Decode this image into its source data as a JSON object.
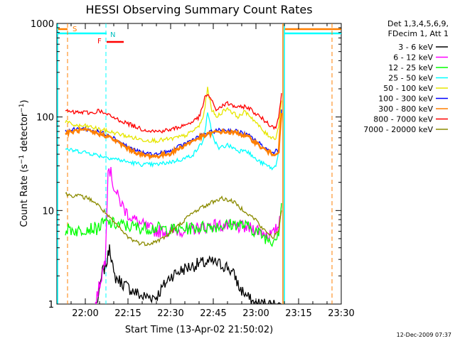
{
  "chart_data": {
    "type": "line",
    "title": "HESSI Observing Summary Count Rates",
    "xlabel": "Start Time (13-Apr-02 21:50:02)",
    "ylabel_main": "Count Rate (s",
    "ylabel_sup1": "−1",
    "ylabel_mid": " detector",
    "ylabel_sup2": "−1",
    "ylabel_end": ")",
    "y_scale": "log",
    "ylim": [
      1,
      1000
    ],
    "y_ticks": [
      {
        "value": 1,
        "label": "1"
      },
      {
        "value": 10,
        "label": "10"
      },
      {
        "value": 100,
        "label": "100"
      },
      {
        "value": 1000,
        "label": "1000"
      }
    ],
    "xlim_minutes": [
      0,
      100
    ],
    "x_ticks": [
      {
        "value": 10,
        "label": "22:00"
      },
      {
        "value": 25,
        "label": "22:15"
      },
      {
        "value": 40,
        "label": "22:30"
      },
      {
        "value": 55,
        "label": "22:45"
      },
      {
        "value": 70,
        "label": "23:00"
      },
      {
        "value": 85,
        "label": "23:15"
      },
      {
        "value": 100,
        "label": "23:30"
      }
    ],
    "legend_header": [
      "Det 1,3,4,5,6,9,",
      "FDecim 1, Att 1"
    ],
    "legend_position": "right",
    "series": [
      {
        "name": "3 - 6 keV",
        "color": "#000000",
        "x": [
          14,
          15,
          16,
          17,
          18,
          18.5,
          20,
          25,
          30,
          35,
          40,
          45,
          50,
          55,
          60,
          63,
          64,
          66,
          68,
          70,
          78,
          79
        ],
        "y": [
          1,
          1.4,
          2.2,
          2.5,
          3.2,
          4.5,
          2,
          1.5,
          1.2,
          1.2,
          2,
          2.4,
          2.7,
          2.8,
          2.5,
          1.9,
          1.5,
          1.3,
          1.1,
          1,
          1,
          1
        ]
      },
      {
        "name": "6 - 12 keV",
        "color": "#ff00ff",
        "x": [
          13.5,
          17,
          18,
          19,
          20,
          21,
          22,
          24,
          26,
          30,
          35,
          40,
          45,
          50,
          55,
          60,
          65,
          70,
          74,
          76,
          78,
          79
        ],
        "y": [
          1,
          3,
          30,
          25,
          18,
          15,
          13,
          10,
          8.5,
          7,
          6,
          6,
          6.2,
          6.5,
          7,
          6.8,
          6.6,
          6.4,
          5.6,
          5.5,
          7,
          12
        ]
      },
      {
        "name": "12 - 25 keV",
        "color": "#00ff00",
        "x": [
          3,
          5,
          8,
          10,
          14,
          17,
          20,
          25,
          30,
          35,
          40,
          45,
          50,
          55,
          60,
          63,
          65,
          68,
          70,
          74,
          76,
          78,
          79
        ],
        "y": [
          6.2,
          6.3,
          6,
          6.5,
          6.4,
          7.5,
          7.2,
          6.8,
          6.5,
          6.5,
          6.2,
          6.4,
          6.6,
          6.8,
          7,
          7.2,
          7,
          6.5,
          6,
          5,
          4.8,
          6,
          12
        ]
      },
      {
        "name": "25 - 50 keV",
        "color": "#00ffff",
        "x": [
          3,
          5,
          8,
          10,
          13,
          16,
          18,
          20,
          25,
          30,
          35,
          40,
          45,
          48,
          50,
          51.5,
          53,
          55,
          57,
          58,
          60,
          62,
          64,
          65,
          66,
          68,
          70,
          74,
          75,
          76,
          77,
          78,
          79
        ],
        "y": [
          46,
          44,
          43,
          42,
          40,
          38,
          37,
          36,
          33,
          31,
          31,
          33,
          36,
          40,
          48,
          56,
          108,
          60,
          45,
          48,
          50,
          47,
          43,
          44,
          46,
          40,
          35,
          30,
          29,
          28,
          30,
          45,
          120
        ]
      },
      {
        "name": "50 - 100 keV",
        "color": "#e6e600",
        "x": [
          3,
          5,
          8,
          10,
          12,
          14,
          16,
          18,
          20,
          25,
          30,
          35,
          40,
          45,
          47,
          50,
          51.5,
          53,
          54.5,
          56,
          58,
          60,
          62,
          64,
          65.5,
          67,
          69,
          71,
          73,
          75,
          76,
          77,
          78,
          79
        ],
        "y": [
          90,
          83,
          80,
          80,
          78,
          75,
          73,
          70,
          68,
          62,
          57,
          56,
          58,
          63,
          68,
          80,
          100,
          200,
          120,
          100,
          112,
          125,
          110,
          100,
          112,
          110,
          95,
          80,
          68,
          62,
          60,
          60,
          80,
          150
        ]
      },
      {
        "name": "100 - 300 keV",
        "color": "#0000ff",
        "x": [
          3,
          5,
          8,
          10,
          12,
          14,
          16,
          18,
          20,
          25,
          30,
          35,
          40,
          45,
          50,
          55,
          58,
          60,
          62,
          64,
          66,
          68,
          70,
          72,
          74,
          76,
          78,
          79
        ],
        "y": [
          70,
          72,
          75,
          75,
          72,
          70,
          68,
          65,
          60,
          48,
          41,
          40,
          43,
          52,
          62,
          70,
          73,
          72,
          71,
          70,
          66,
          62,
          56,
          50,
          45,
          42,
          45,
          120
        ]
      },
      {
        "name": "300 - 800 keV",
        "color": "#ff7f00",
        "x": [
          3,
          5,
          8,
          10,
          12,
          14,
          16,
          18,
          20,
          25,
          30,
          35,
          40,
          45,
          50,
          55,
          58,
          60,
          62,
          64,
          66,
          68,
          70,
          72,
          74,
          76,
          78,
          79
        ],
        "y": [
          67,
          69,
          72,
          72,
          69,
          67,
          65,
          62,
          57,
          46,
          39,
          38,
          41,
          50,
          60,
          68,
          70,
          69,
          68,
          67,
          63,
          59,
          53,
          47,
          43,
          40,
          43,
          110
        ]
      },
      {
        "name": "800 - 7000 keV",
        "color": "#ff0000",
        "x": [
          3,
          5,
          8,
          10,
          13,
          15,
          16,
          18,
          20,
          25,
          30,
          35,
          40,
          45,
          48,
          50,
          51,
          52,
          53,
          54,
          55,
          56,
          58,
          60,
          62,
          64,
          66,
          68,
          70,
          73,
          75,
          76,
          77,
          78,
          79
        ],
        "y": [
          118,
          112,
          112,
          112,
          110,
          120,
          110,
          105,
          98,
          85,
          74,
          70,
          73,
          82,
          90,
          100,
          120,
          160,
          175,
          160,
          135,
          120,
          130,
          140,
          132,
          125,
          130,
          122,
          108,
          92,
          82,
          78,
          80,
          100,
          180
        ]
      },
      {
        "name": "7000 - 20000 keV",
        "color": "#8b8b00",
        "x": [
          3,
          5,
          7,
          9,
          11,
          13,
          15,
          17,
          19,
          21,
          23,
          25,
          27,
          29,
          31,
          33,
          35,
          37,
          39,
          41,
          43,
          45,
          47,
          50,
          53,
          55,
          58,
          60,
          62,
          64,
          66,
          68,
          70,
          72,
          74,
          76,
          78,
          79
        ],
        "y": [
          15,
          14.5,
          14.5,
          14,
          13.5,
          12.5,
          11,
          9.5,
          8,
          7,
          6,
          5.2,
          4.8,
          4.5,
          4.4,
          4.5,
          4.7,
          5,
          5.5,
          6.2,
          7,
          8,
          9,
          10.5,
          11.5,
          12.5,
          13.5,
          13,
          12.5,
          11,
          10,
          8.8,
          8,
          6.5,
          5.8,
          5.2,
          6,
          10
        ]
      }
    ],
    "segments": {
      "saa_label": "S",
      "flare_label": "F",
      "night_label": "N"
    }
  },
  "footer": {
    "timestamp": "12-Dec-2009 07:37"
  }
}
